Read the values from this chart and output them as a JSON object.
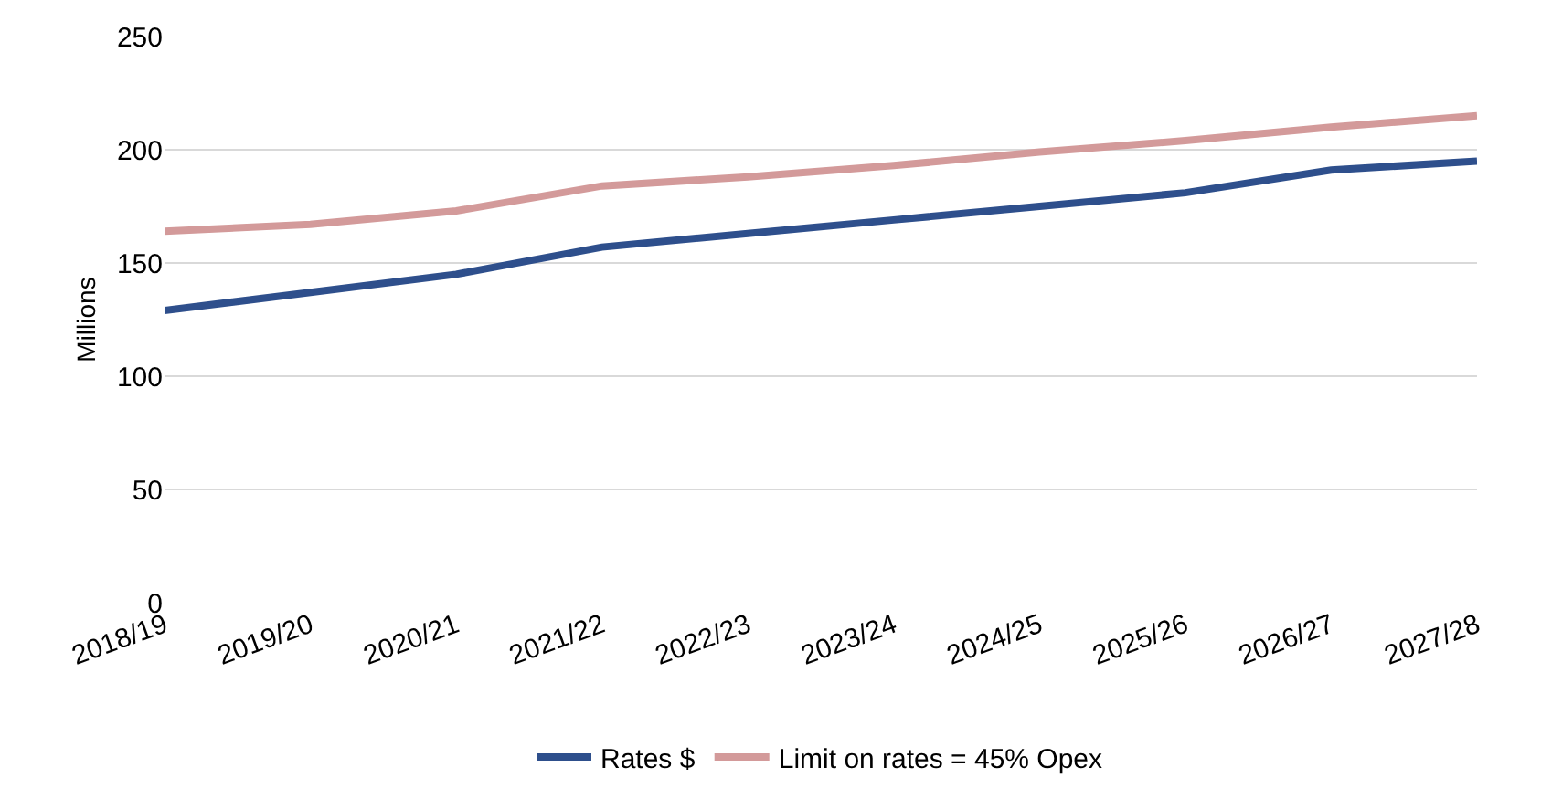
{
  "chart_data": {
    "type": "line",
    "ylabel": "Millions",
    "categories": [
      "2018/19",
      "2019/20",
      "2020/21",
      "2021/22",
      "2022/23",
      "2023/24",
      "2024/25",
      "2025/26",
      "2026/27",
      "2027/28"
    ],
    "series": [
      {
        "name": "Rates $",
        "color": "#2e4f8c",
        "values": [
          129,
          137,
          145,
          157,
          163,
          169,
          175,
          181,
          191,
          195
        ]
      },
      {
        "name": "Limit on rates = 45% Opex",
        "color": "#d39a9a",
        "values": [
          164,
          167,
          173,
          184,
          188,
          193,
          199,
          204,
          210,
          215
        ]
      }
    ],
    "ylim": [
      0,
      250
    ],
    "yticks": [
      0,
      50,
      100,
      150,
      200,
      250
    ],
    "grid": "y",
    "legend": "bottom",
    "marker": "none",
    "line_style": "solid"
  }
}
